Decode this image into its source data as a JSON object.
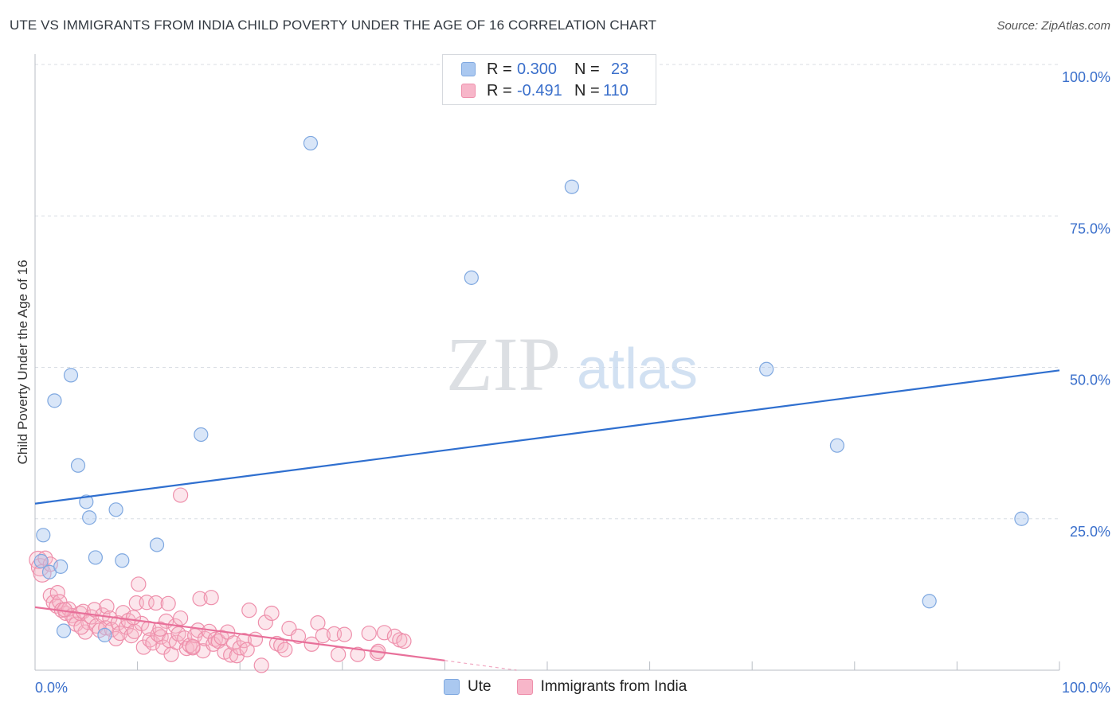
{
  "header": {
    "title": "UTE VS IMMIGRANTS FROM INDIA CHILD POVERTY UNDER THE AGE OF 16 CORRELATION CHART",
    "source": "Source: ZipAtlas.com"
  },
  "watermark": {
    "zip": "ZIP",
    "atlas": "atlas"
  },
  "legend_top": {
    "rows": [
      {
        "r_label": "R =",
        "r_value": "0.300",
        "n_label": "N =",
        "n_value": "23"
      },
      {
        "r_label": "R =",
        "r_value": "-0.491",
        "n_label": "N =",
        "n_value": "110"
      }
    ]
  },
  "legend_bottom": {
    "items": [
      {
        "label": "Ute"
      },
      {
        "label": "Immigrants from India"
      }
    ]
  },
  "colors": {
    "ute_fill": "#aac8f0",
    "ute_stroke": "#7fa8e0",
    "ute_line": "#2f6fcf",
    "india_fill": "#f7b6c9",
    "india_stroke": "#ee8fab",
    "india_line": "#e8709a",
    "grid": "#d8dde3",
    "tick_label": "#3a6fcb"
  },
  "chart_data": {
    "type": "scatter",
    "title": "UTE VS IMMIGRANTS FROM INDIA CHILD POVERTY UNDER THE AGE OF 16 CORRELATION CHART",
    "xlabel": "",
    "ylabel": "Child Poverty Under the Age of 16",
    "xlim": [
      0,
      100
    ],
    "ylim": [
      0,
      100
    ],
    "x_tick_labels": [
      "0.0%",
      "100.0%"
    ],
    "y_ticks": [
      {
        "value": 25,
        "label": "25.0%"
      },
      {
        "value": 50,
        "label": "50.0%"
      },
      {
        "value": 75,
        "label": "75.0%"
      },
      {
        "value": 100,
        "label": "100.0%"
      }
    ],
    "series": [
      {
        "name": "Ute",
        "R": 0.3,
        "N": 23,
        "trend": {
          "x0": 0,
          "y0": 27.5,
          "x1": 100,
          "y1": 49.5
        },
        "points": [
          [
            0.8,
            22.3
          ],
          [
            0.6,
            18.0
          ],
          [
            1.4,
            16.2
          ],
          [
            2.5,
            17.1
          ],
          [
            2.8,
            6.5
          ],
          [
            1.9,
            44.5
          ],
          [
            3.5,
            48.7
          ],
          [
            4.2,
            33.8
          ],
          [
            5.0,
            27.8
          ],
          [
            5.3,
            25.2
          ],
          [
            5.9,
            18.6
          ],
          [
            6.8,
            5.8
          ],
          [
            7.9,
            26.5
          ],
          [
            8.5,
            18.1
          ],
          [
            11.9,
            20.7
          ],
          [
            16.2,
            38.9
          ],
          [
            26.9,
            87.0
          ],
          [
            42.6,
            64.8
          ],
          [
            52.4,
            79.8
          ],
          [
            71.4,
            49.7
          ],
          [
            78.3,
            37.1
          ],
          [
            87.3,
            11.4
          ],
          [
            96.3,
            25.0
          ]
        ]
      },
      {
        "name": "Immigrants from India",
        "R": -0.491,
        "N": 110,
        "trend": {
          "x0": 0,
          "y0": 10.4,
          "x1": 40,
          "y1": 1.6,
          "dashed_to_x": 47,
          "dashed_to_y": 0
        },
        "points": [
          [
            0.3,
            18.2
          ],
          [
            0.5,
            17.0
          ],
          [
            0.7,
            16.0
          ],
          [
            1.0,
            18.5
          ],
          [
            1.5,
            17.5
          ],
          [
            1.5,
            12.3
          ],
          [
            1.8,
            11.2
          ],
          [
            2.1,
            10.6
          ],
          [
            2.2,
            12.8
          ],
          [
            2.4,
            11.3
          ],
          [
            2.6,
            9.9
          ],
          [
            3.0,
            9.4
          ],
          [
            3.3,
            10.1
          ],
          [
            3.6,
            9.0
          ],
          [
            3.8,
            8.5
          ],
          [
            4.0,
            7.6
          ],
          [
            4.4,
            9.4
          ],
          [
            4.7,
            9.7
          ],
          [
            4.9,
            6.3
          ],
          [
            5.2,
            7.9
          ],
          [
            5.5,
            8.8
          ],
          [
            5.8,
            10.0
          ],
          [
            6.0,
            7.3
          ],
          [
            6.3,
            6.6
          ],
          [
            6.6,
            9.1
          ],
          [
            6.9,
            7.0
          ],
          [
            7.0,
            10.5
          ],
          [
            7.3,
            8.6
          ],
          [
            7.5,
            6.7
          ],
          [
            7.9,
            5.2
          ],
          [
            8.1,
            7.8
          ],
          [
            8.3,
            6.1
          ],
          [
            8.6,
            9.5
          ],
          [
            8.9,
            7.1
          ],
          [
            9.1,
            8.2
          ],
          [
            9.4,
            5.7
          ],
          [
            9.7,
            6.4
          ],
          [
            9.9,
            11.1
          ],
          [
            10.1,
            14.2
          ],
          [
            10.4,
            7.7
          ],
          [
            10.6,
            3.8
          ],
          [
            10.9,
            11.2
          ],
          [
            11.1,
            6.9
          ],
          [
            11.2,
            5.0
          ],
          [
            11.5,
            4.5
          ],
          [
            11.8,
            11.1
          ],
          [
            12.0,
            5.9
          ],
          [
            12.3,
            5.5
          ],
          [
            12.5,
            3.8
          ],
          [
            12.8,
            8.1
          ],
          [
            13.0,
            11.0
          ],
          [
            13.1,
            4.9
          ],
          [
            13.3,
            2.6
          ],
          [
            13.7,
            7.3
          ],
          [
            13.8,
            4.6
          ],
          [
            14.0,
            6.0
          ],
          [
            14.2,
            8.6
          ],
          [
            14.6,
            5.3
          ],
          [
            14.8,
            3.6
          ],
          [
            15.1,
            4.1
          ],
          [
            15.4,
            3.7
          ],
          [
            15.6,
            5.7
          ],
          [
            15.9,
            6.6
          ],
          [
            16.1,
            11.8
          ],
          [
            16.4,
            3.2
          ],
          [
            16.6,
            5.2
          ],
          [
            17.0,
            6.4
          ],
          [
            17.2,
            12.0
          ],
          [
            17.4,
            4.3
          ],
          [
            17.6,
            5.1
          ],
          [
            17.9,
            4.8
          ],
          [
            18.2,
            5.4
          ],
          [
            18.5,
            3.0
          ],
          [
            18.8,
            6.3
          ],
          [
            19.1,
            2.5
          ],
          [
            19.4,
            4.5
          ],
          [
            19.7,
            2.4
          ],
          [
            20.0,
            3.7
          ],
          [
            20.4,
            4.9
          ],
          [
            20.7,
            3.4
          ],
          [
            20.9,
            9.9
          ],
          [
            21.5,
            5.1
          ],
          [
            22.1,
            0.8
          ],
          [
            22.5,
            7.9
          ],
          [
            23.1,
            9.4
          ],
          [
            23.6,
            4.4
          ],
          [
            24.0,
            4.1
          ],
          [
            24.4,
            3.4
          ],
          [
            24.8,
            6.9
          ],
          [
            25.7,
            5.6
          ],
          [
            27.0,
            4.3
          ],
          [
            27.6,
            7.8
          ],
          [
            28.1,
            5.7
          ],
          [
            29.2,
            6.0
          ],
          [
            29.6,
            2.6
          ],
          [
            30.2,
            5.9
          ],
          [
            31.5,
            2.6
          ],
          [
            32.6,
            6.1
          ],
          [
            33.4,
            2.8
          ],
          [
            33.5,
            3.1
          ],
          [
            34.1,
            6.2
          ],
          [
            35.1,
            5.6
          ],
          [
            35.6,
            5.0
          ],
          [
            36.0,
            4.8
          ],
          [
            14.2,
            28.9
          ],
          [
            9.6,
            8.7
          ],
          [
            12.2,
            6.8
          ],
          [
            15.4,
            3.9
          ],
          [
            4.5,
            7.1
          ],
          [
            2.9,
            10.0
          ]
        ]
      }
    ],
    "legend_position": "top-center"
  }
}
